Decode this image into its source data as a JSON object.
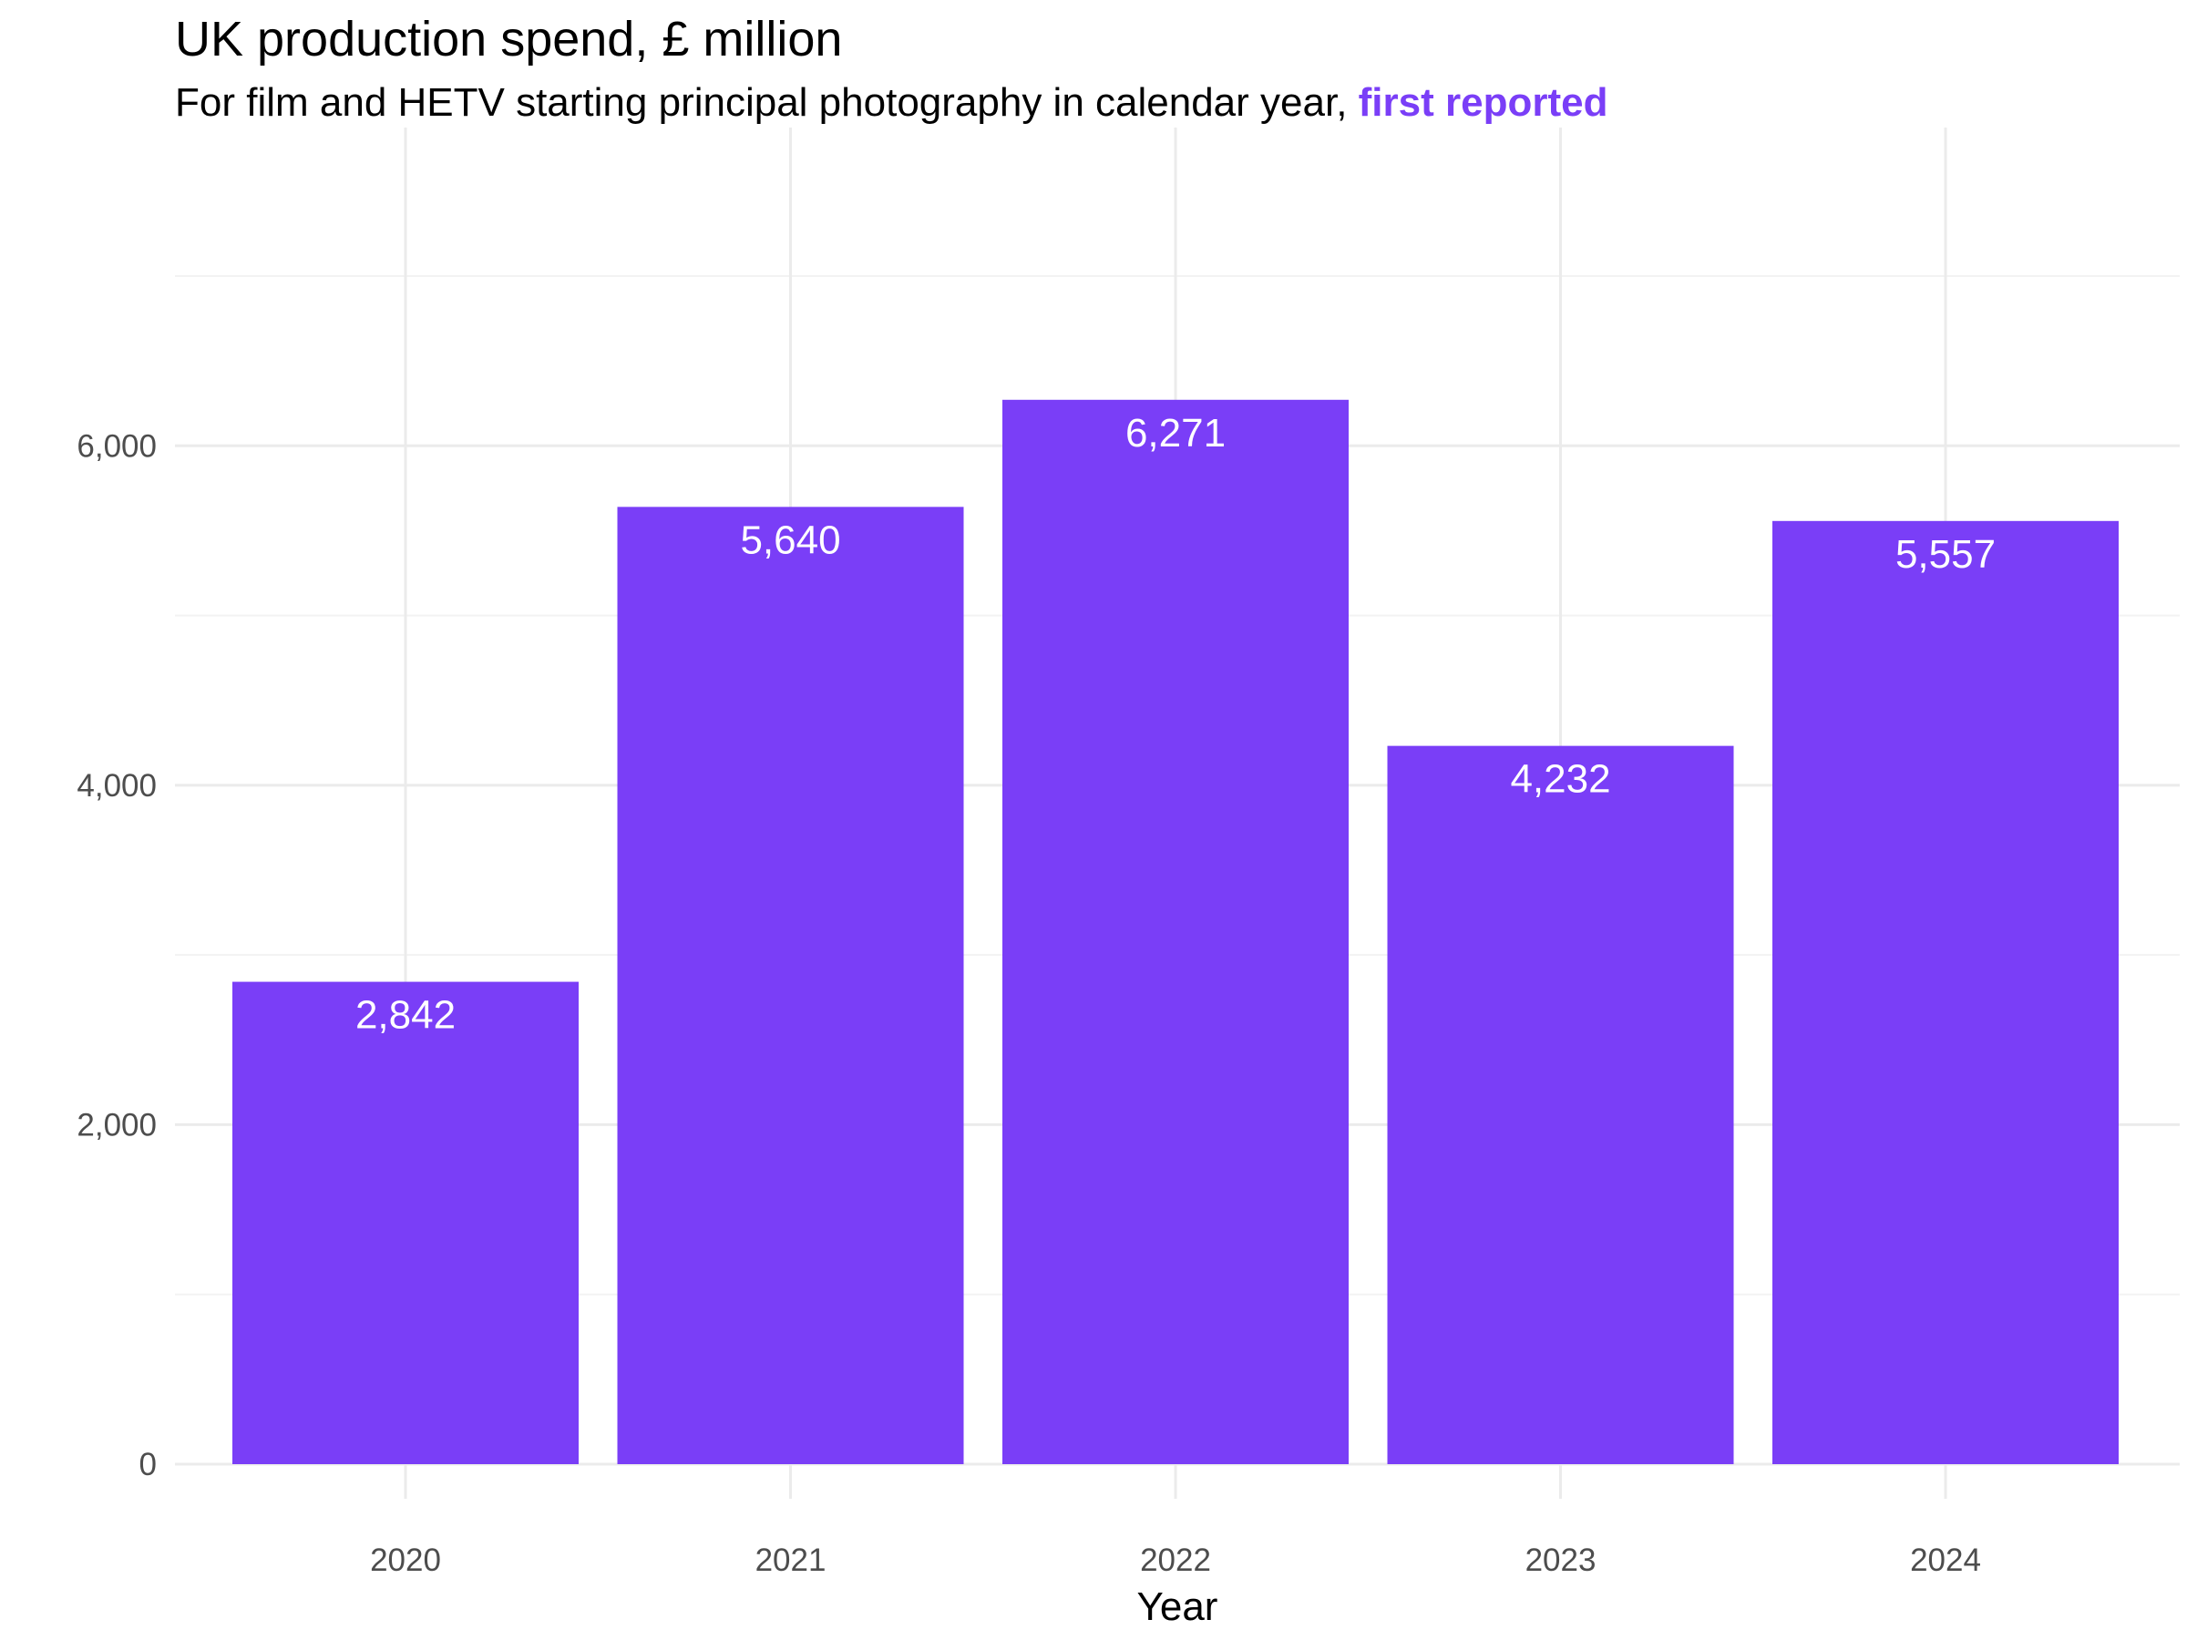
{
  "chart_data": {
    "type": "bar",
    "title": "UK production spend, £ million",
    "subtitle_prefix": "For film and HETV starting principal photography in calendar year, ",
    "subtitle_highlight": "first reported",
    "xlabel": "Year",
    "ylabel": "",
    "categories": [
      "2020",
      "2021",
      "2022",
      "2023",
      "2024"
    ],
    "values": [
      2842,
      5640,
      6271,
      4232,
      5557
    ],
    "value_labels": [
      "2,842",
      "5,640",
      "6,271",
      "4,232",
      "5,557"
    ],
    "ylim": [
      0,
      7000
    ],
    "y_ticks": [
      0,
      2000,
      4000,
      6000
    ],
    "y_tick_labels": [
      "0",
      "2,000",
      "4,000",
      "6,000"
    ],
    "grid": true,
    "legend": "none",
    "colors": {
      "bar": "#7a3ef7",
      "highlight": "#7a3ef7"
    }
  }
}
